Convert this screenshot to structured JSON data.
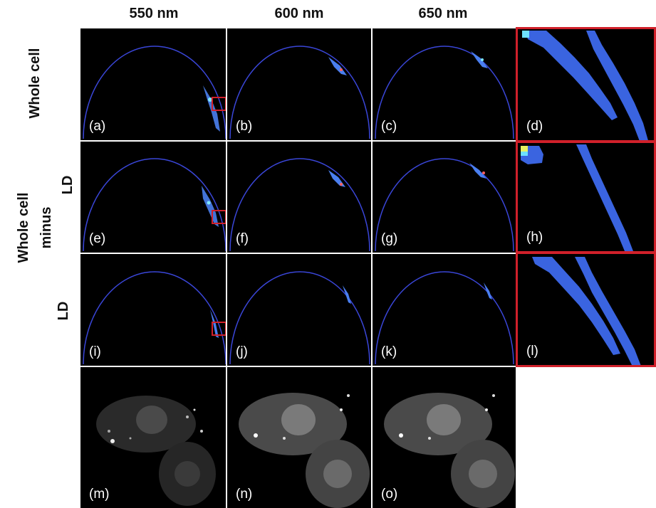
{
  "columns": [
    "550 nm",
    "600 nm",
    "650 nm"
  ],
  "row_labels": {
    "whole_cell": "Whole cell",
    "minus_line1": "Whole cell",
    "minus_line2": "minus",
    "minus_line3": "LD",
    "ld": "LD"
  },
  "panels": {
    "a": "(a)",
    "b": "(b)",
    "c": "(c)",
    "d": "(d)",
    "e": "(e)",
    "f": "(f)",
    "g": "(g)",
    "h": "(h)",
    "i": "(i)",
    "j": "(j)",
    "k": "(k)",
    "l": "(l)",
    "m": "(m)",
    "n": "(n)",
    "o": "(o)"
  },
  "colors": {
    "semicircle": "#3a46d8",
    "highlight_box": "#d0202a",
    "border": "#c8c8c8"
  }
}
